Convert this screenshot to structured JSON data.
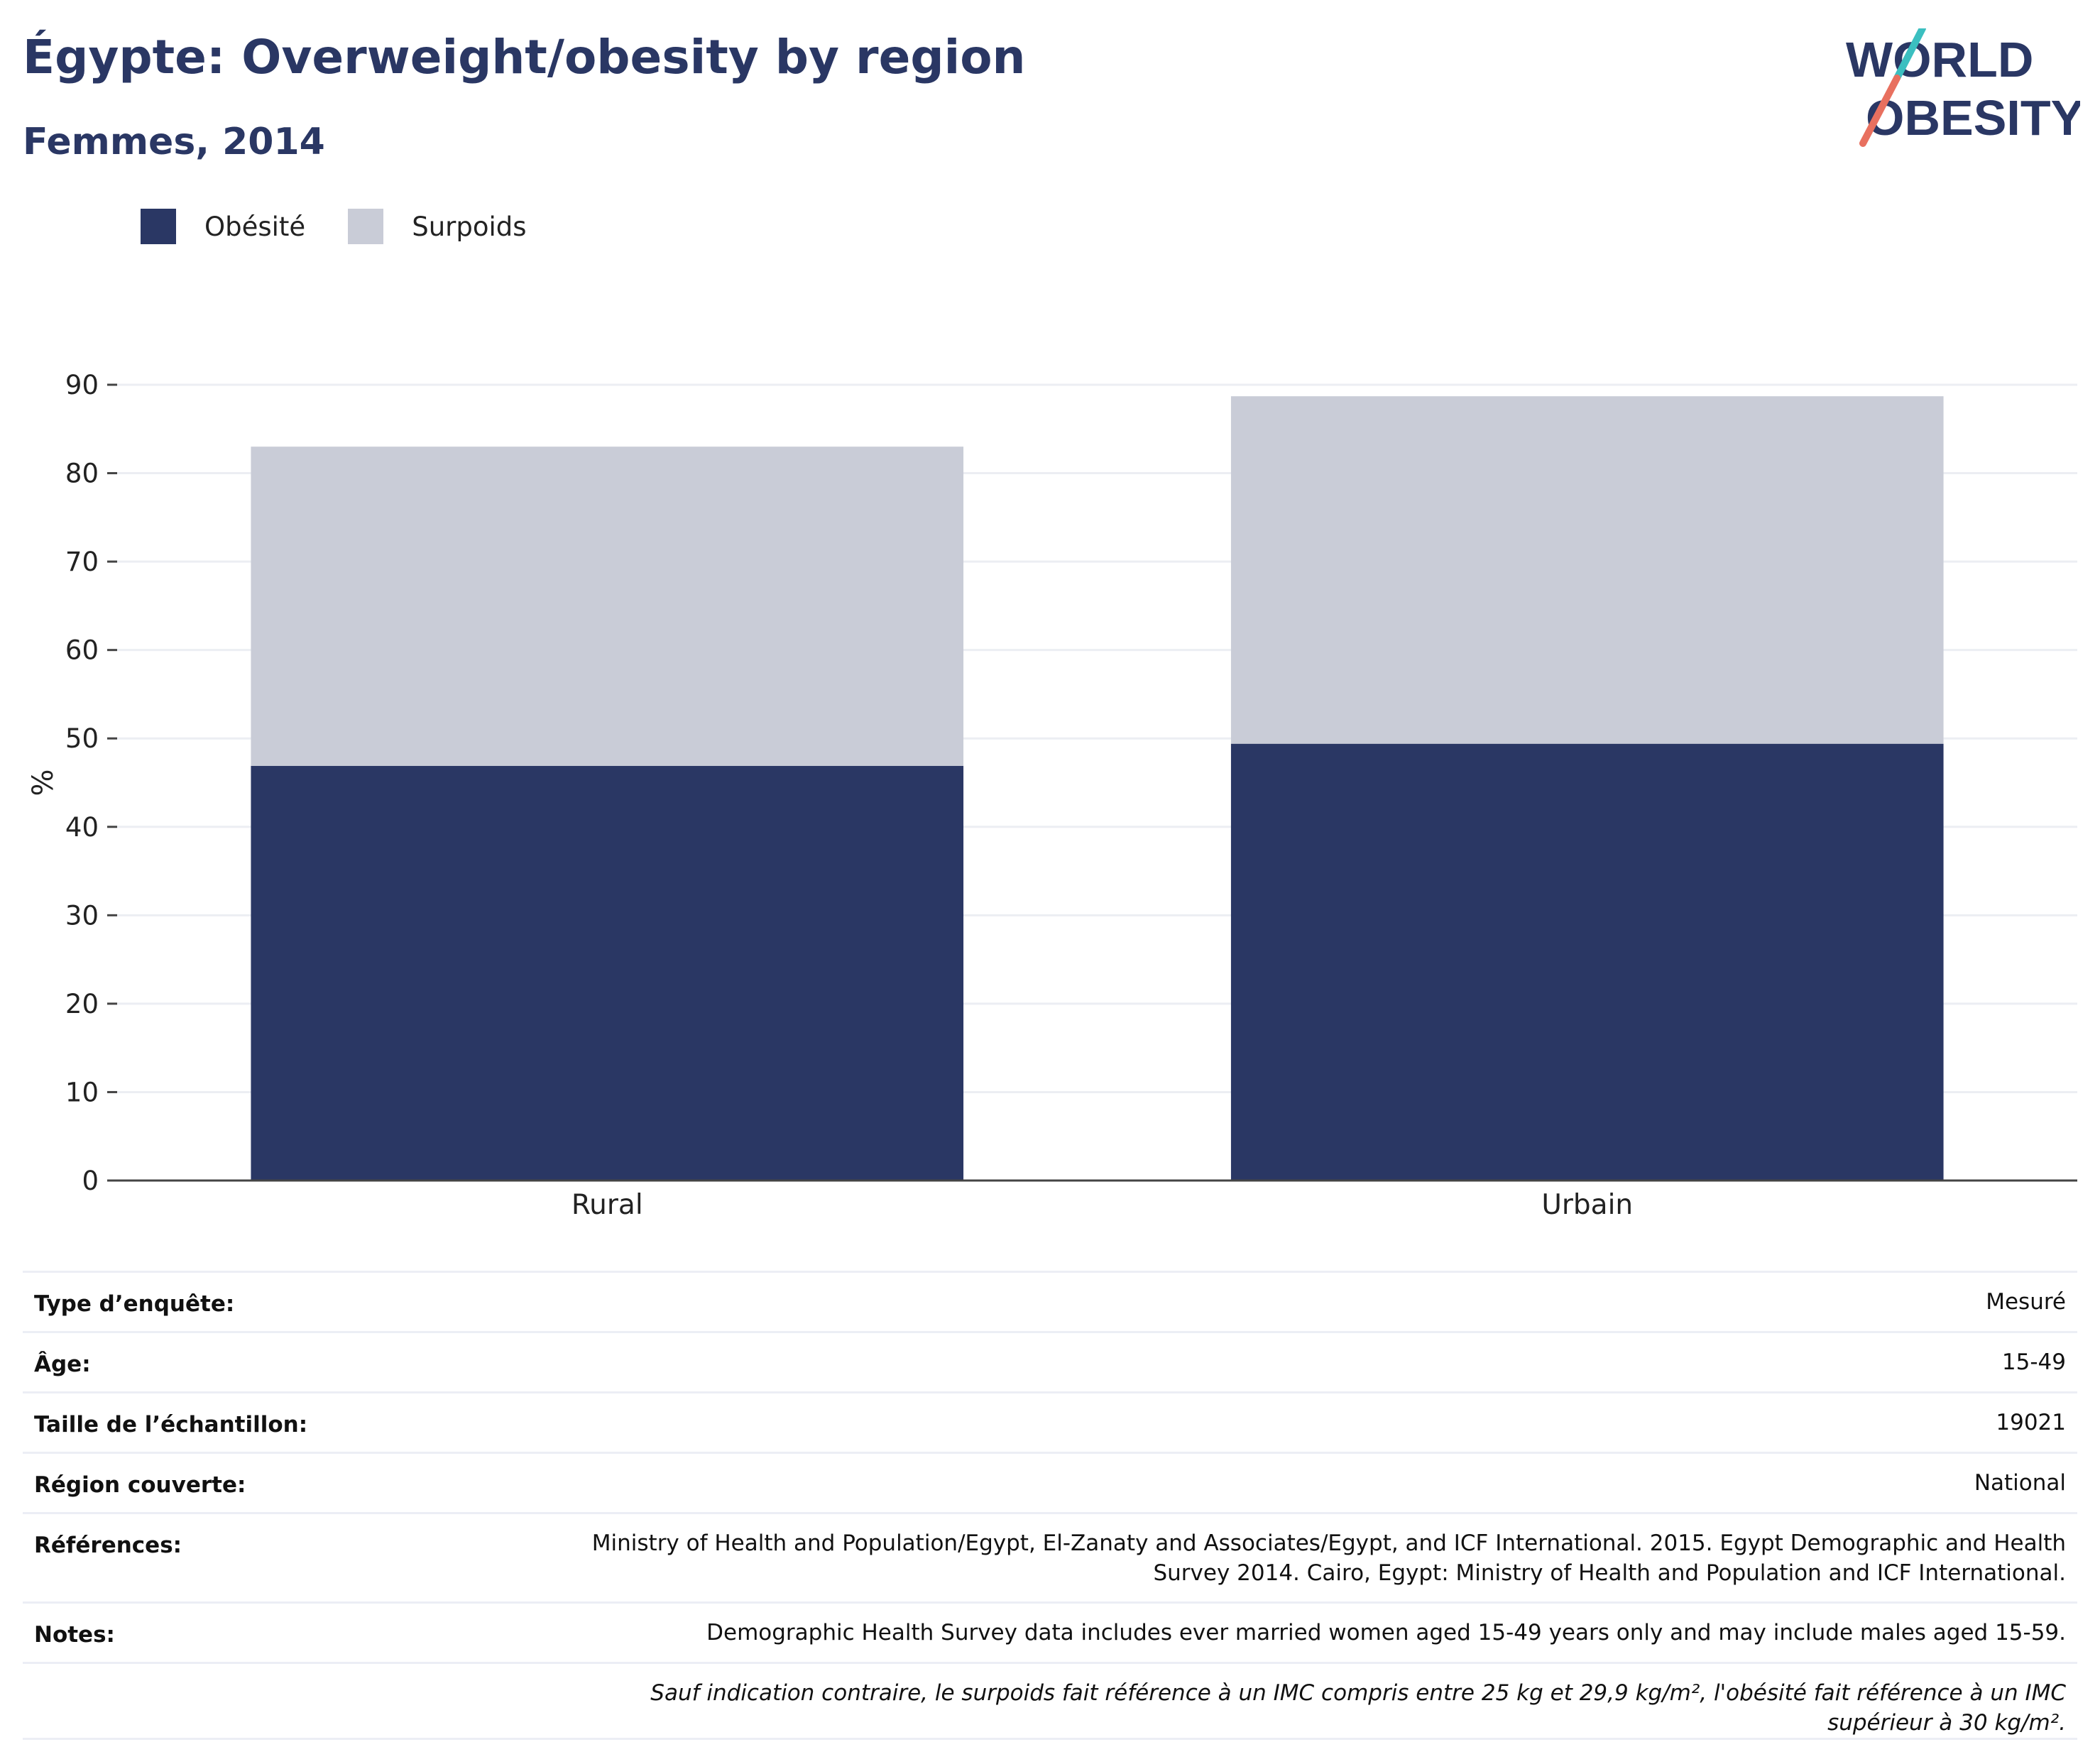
{
  "header": {
    "title": "Égypte: Overweight/obesity by region",
    "subtitle": "Femmes, 2014"
  },
  "logo": {
    "line1": "WORLD",
    "line2": "OBESITY"
  },
  "colors": {
    "obesity": "#2a3764",
    "overweight": "#c9ccd7",
    "title": "#2a3764",
    "logo_teal": "#3bbfc0",
    "logo_coral": "#e8705f"
  },
  "chart_data": {
    "type": "bar",
    "stacked": true,
    "categories": [
      "Rural",
      "Urbain"
    ],
    "series": [
      {
        "name": "Obésité",
        "values": [
          46.9,
          49.4
        ]
      },
      {
        "name": "Surpoids",
        "values": [
          36.1,
          39.3
        ]
      }
    ],
    "ylabel": "%",
    "ylim": [
      0,
      90
    ],
    "yticks": [
      0,
      10,
      20,
      30,
      40,
      50,
      60,
      70,
      80,
      90
    ],
    "grid": true,
    "legend_position": "top-left"
  },
  "info": {
    "rows": [
      {
        "label": "Type d’enquête:",
        "value": "Mesuré"
      },
      {
        "label": "Âge:",
        "value": "15-49"
      },
      {
        "label": "Taille de l’échantillon:",
        "value": "19021"
      },
      {
        "label": "Région couverte:",
        "value": "National"
      },
      {
        "label": "Références:",
        "value": "Ministry of Health and Population/Egypt, El-Zanaty and Associates/Egypt, and ICF International. 2015. Egypt Demographic and Health Survey 2014. Cairo, Egypt: Ministry of Health and Population and ICF International."
      },
      {
        "label": "Notes:",
        "value": "Demographic Health Survey data includes ever married women aged 15-49 years only and may include males aged 15-59."
      }
    ],
    "footnote": "Sauf indication contraire, le surpoids fait référence à un IMC compris entre 25 kg et 29,9 kg/m², l'obésité fait référence à un IMC supérieur à 30 kg/m²."
  }
}
